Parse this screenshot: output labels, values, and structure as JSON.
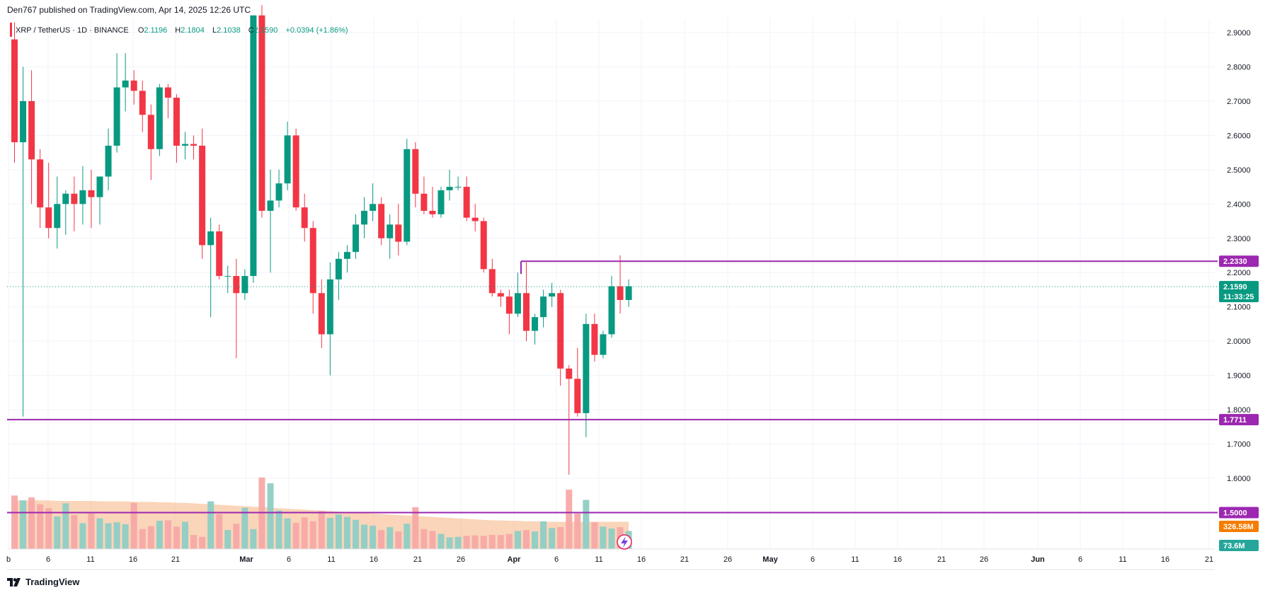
{
  "header": {
    "publisher": "Den767 published on TradingView.com, Apr 14, 2025 12:26 UTC",
    "symbol_line": "XRP / TetherUS · 1D · BINANCE",
    "o_label": "O",
    "o_value": "2.1196",
    "h_label": "H",
    "h_value": "2.1804",
    "l_label": "L",
    "l_value": "2.1038",
    "c_label": "C",
    "c_value": "2.1590",
    "change": "+0.0394 (+1.86%)"
  },
  "brand": {
    "name": "TradingView",
    "logo_icon": "tradingview-logo-icon"
  },
  "colors": {
    "up": "#089981",
    "down": "#f23645",
    "vol_up": "#8fcdc4",
    "vol_down": "#f7a9a7",
    "level": "#9c27b0",
    "vol_ma": "#f7b98a",
    "ma_badge": "#f57c00",
    "current": "#089981",
    "grid": "#f0f3fa"
  },
  "chart_data": {
    "type": "candlestick",
    "symbol": "XRP / TetherUS",
    "interval": "1D",
    "exchange": "BINANCE",
    "ylim": [
      1.55,
      2.95
    ],
    "y_ticks": [
      "2.9000",
      "2.8000",
      "2.7000",
      "2.6000",
      "2.5000",
      "2.4000",
      "2.3000",
      "2.2000",
      "2.1000",
      "2.0000",
      "1.9000",
      "1.8000",
      "1.7000",
      "1.6000"
    ],
    "x_ticks": [
      "b",
      "6",
      "11",
      "16",
      "21",
      "Mar",
      "6",
      "11",
      "16",
      "21",
      "26",
      "Apr",
      "6",
      "11",
      "16",
      "21",
      "26",
      "May",
      "6",
      "11",
      "16",
      "21",
      "26",
      "Jun",
      "6",
      "11",
      "16",
      "21"
    ],
    "candles": [
      {
        "o": 2.88,
        "h": 2.93,
        "l": 2.52,
        "c": 2.58
      },
      {
        "o": 2.58,
        "h": 2.8,
        "l": 1.78,
        "c": 2.7
      },
      {
        "o": 2.7,
        "h": 2.79,
        "l": 2.4,
        "c": 2.53
      },
      {
        "o": 2.53,
        "h": 2.56,
        "l": 2.33,
        "c": 2.39
      },
      {
        "o": 2.39,
        "h": 2.52,
        "l": 2.3,
        "c": 2.33
      },
      {
        "o": 2.33,
        "h": 2.48,
        "l": 2.27,
        "c": 2.4
      },
      {
        "o": 2.4,
        "h": 2.44,
        "l": 2.31,
        "c": 2.43
      },
      {
        "o": 2.43,
        "h": 2.48,
        "l": 2.32,
        "c": 2.4
      },
      {
        "o": 2.4,
        "h": 2.51,
        "l": 2.34,
        "c": 2.44
      },
      {
        "o": 2.44,
        "h": 2.5,
        "l": 2.33,
        "c": 2.42
      },
      {
        "o": 2.42,
        "h": 2.48,
        "l": 2.34,
        "c": 2.48
      },
      {
        "o": 2.48,
        "h": 2.62,
        "l": 2.44,
        "c": 2.57
      },
      {
        "o": 2.57,
        "h": 2.84,
        "l": 2.55,
        "c": 2.74
      },
      {
        "o": 2.74,
        "h": 2.84,
        "l": 2.67,
        "c": 2.76
      },
      {
        "o": 2.76,
        "h": 2.79,
        "l": 2.69,
        "c": 2.73
      },
      {
        "o": 2.73,
        "h": 2.76,
        "l": 2.61,
        "c": 2.66
      },
      {
        "o": 2.66,
        "h": 2.69,
        "l": 2.47,
        "c": 2.56
      },
      {
        "o": 2.56,
        "h": 2.75,
        "l": 2.54,
        "c": 2.74
      },
      {
        "o": 2.74,
        "h": 2.75,
        "l": 2.65,
        "c": 2.71
      },
      {
        "o": 2.71,
        "h": 2.72,
        "l": 2.52,
        "c": 2.57
      },
      {
        "o": 2.57,
        "h": 2.61,
        "l": 2.53,
        "c": 2.575
      },
      {
        "o": 2.575,
        "h": 2.6,
        "l": 2.53,
        "c": 2.57
      },
      {
        "o": 2.57,
        "h": 2.62,
        "l": 2.24,
        "c": 2.28
      },
      {
        "o": 2.28,
        "h": 2.36,
        "l": 2.07,
        "c": 2.32
      },
      {
        "o": 2.32,
        "h": 2.34,
        "l": 2.18,
        "c": 2.19
      },
      {
        "o": 2.19,
        "h": 2.22,
        "l": 2.14,
        "c": 2.19
      },
      {
        "o": 2.19,
        "h": 2.24,
        "l": 1.95,
        "c": 2.14
      },
      {
        "o": 2.14,
        "h": 2.21,
        "l": 2.12,
        "c": 2.19
      },
      {
        "o": 2.19,
        "h": 2.95,
        "l": 2.17,
        "c": 2.95
      },
      {
        "o": 2.95,
        "h": 2.98,
        "l": 2.36,
        "c": 2.38
      },
      {
        "o": 2.38,
        "h": 2.5,
        "l": 2.2,
        "c": 2.41
      },
      {
        "o": 2.41,
        "h": 2.5,
        "l": 2.39,
        "c": 2.46
      },
      {
        "o": 2.46,
        "h": 2.64,
        "l": 2.44,
        "c": 2.6
      },
      {
        "o": 2.6,
        "h": 2.62,
        "l": 2.38,
        "c": 2.39
      },
      {
        "o": 2.39,
        "h": 2.43,
        "l": 2.29,
        "c": 2.33
      },
      {
        "o": 2.33,
        "h": 2.35,
        "l": 2.08,
        "c": 2.14
      },
      {
        "o": 2.14,
        "h": 2.18,
        "l": 1.98,
        "c": 2.02
      },
      {
        "o": 2.02,
        "h": 2.23,
        "l": 1.9,
        "c": 2.18
      },
      {
        "o": 2.18,
        "h": 2.26,
        "l": 2.12,
        "c": 2.24
      },
      {
        "o": 2.24,
        "h": 2.28,
        "l": 2.2,
        "c": 2.26
      },
      {
        "o": 2.26,
        "h": 2.37,
        "l": 2.24,
        "c": 2.34
      },
      {
        "o": 2.34,
        "h": 2.42,
        "l": 2.3,
        "c": 2.38
      },
      {
        "o": 2.38,
        "h": 2.46,
        "l": 2.35,
        "c": 2.4
      },
      {
        "o": 2.4,
        "h": 2.42,
        "l": 2.28,
        "c": 2.3
      },
      {
        "o": 2.3,
        "h": 2.37,
        "l": 2.24,
        "c": 2.34
      },
      {
        "o": 2.34,
        "h": 2.4,
        "l": 2.25,
        "c": 2.29
      },
      {
        "o": 2.29,
        "h": 2.59,
        "l": 2.28,
        "c": 2.56
      },
      {
        "o": 2.56,
        "h": 2.58,
        "l": 2.39,
        "c": 2.43
      },
      {
        "o": 2.43,
        "h": 2.48,
        "l": 2.37,
        "c": 2.38
      },
      {
        "o": 2.38,
        "h": 2.45,
        "l": 2.36,
        "c": 2.37
      },
      {
        "o": 2.37,
        "h": 2.45,
        "l": 2.36,
        "c": 2.44
      },
      {
        "o": 2.44,
        "h": 2.5,
        "l": 2.41,
        "c": 2.45
      },
      {
        "o": 2.45,
        "h": 2.48,
        "l": 2.44,
        "c": 2.45
      },
      {
        "o": 2.45,
        "h": 2.48,
        "l": 2.35,
        "c": 2.36
      },
      {
        "o": 2.36,
        "h": 2.4,
        "l": 2.32,
        "c": 2.35
      },
      {
        "o": 2.35,
        "h": 2.36,
        "l": 2.2,
        "c": 2.21
      },
      {
        "o": 2.21,
        "h": 2.24,
        "l": 2.13,
        "c": 2.14
      },
      {
        "o": 2.14,
        "h": 2.15,
        "l": 2.1,
        "c": 2.13
      },
      {
        "o": 2.13,
        "h": 2.15,
        "l": 2.02,
        "c": 2.08
      },
      {
        "o": 2.08,
        "h": 2.2,
        "l": 2.07,
        "c": 2.14
      },
      {
        "o": 2.14,
        "h": 2.23,
        "l": 2.0,
        "c": 2.03
      },
      {
        "o": 2.03,
        "h": 2.08,
        "l": 1.99,
        "c": 2.07
      },
      {
        "o": 2.07,
        "h": 2.15,
        "l": 2.04,
        "c": 2.13
      },
      {
        "o": 2.13,
        "h": 2.17,
        "l": 2.1,
        "c": 2.14
      },
      {
        "o": 2.14,
        "h": 2.15,
        "l": 1.87,
        "c": 1.92
      },
      {
        "o": 1.92,
        "h": 1.93,
        "l": 1.61,
        "c": 1.89
      },
      {
        "o": 1.89,
        "h": 1.98,
        "l": 1.78,
        "c": 1.79
      },
      {
        "o": 1.79,
        "h": 2.08,
        "l": 1.72,
        "c": 2.05
      },
      {
        "o": 2.05,
        "h": 2.08,
        "l": 1.94,
        "c": 1.96
      },
      {
        "o": 1.96,
        "h": 2.03,
        "l": 1.95,
        "c": 2.02
      },
      {
        "o": 2.02,
        "h": 2.19,
        "l": 2.01,
        "c": 2.16
      },
      {
        "o": 2.16,
        "h": 2.25,
        "l": 2.08,
        "c": 2.12
      },
      {
        "o": 2.12,
        "h": 2.18,
        "l": 2.1,
        "c": 2.16
      }
    ],
    "volume_scale_max": 1.6,
    "volume": [
      1.1,
      1.0,
      1.06,
      0.92,
      0.84,
      0.67,
      0.94,
      0.7,
      0.53,
      0.73,
      0.63,
      0.53,
      0.55,
      0.51,
      0.95,
      0.41,
      0.47,
      0.58,
      0.59,
      0.46,
      0.56,
      0.29,
      0.25,
      0.98,
      0.72,
      0.39,
      0.52,
      0.85,
      0.41,
      1.47,
      1.35,
      0.79,
      0.63,
      0.54,
      0.65,
      0.57,
      0.78,
      0.64,
      0.71,
      0.66,
      0.6,
      0.5,
      0.48,
      0.39,
      0.45,
      0.36,
      0.52,
      0.86,
      0.41,
      0.37,
      0.31,
      0.24,
      0.25,
      0.27,
      0.28,
      0.27,
      0.29,
      0.29,
      0.31,
      0.37,
      0.39,
      0.36,
      0.57,
      0.43,
      0.45,
      1.22,
      0.73,
      1.01,
      0.55,
      0.46,
      0.42,
      0.45,
      0.37
    ],
    "volume_ma": [
      1.0,
      1.0,
      1.0,
      1.0,
      1.0,
      0.99,
      0.99,
      0.99,
      0.99,
      0.99,
      0.98,
      0.98,
      0.98,
      0.98,
      0.97,
      0.97,
      0.97,
      0.96,
      0.96,
      0.95,
      0.95,
      0.94,
      0.93,
      0.92,
      0.91,
      0.9,
      0.89,
      0.88,
      0.87,
      0.86,
      0.85,
      0.84,
      0.83,
      0.82,
      0.81,
      0.8,
      0.79,
      0.78,
      0.77,
      0.76,
      0.75,
      0.74,
      0.73,
      0.72,
      0.71,
      0.7,
      0.69,
      0.68,
      0.67,
      0.66,
      0.65,
      0.64,
      0.63,
      0.62,
      0.61,
      0.6,
      0.59,
      0.59,
      0.58,
      0.58,
      0.57,
      0.57,
      0.56,
      0.56,
      0.56,
      0.56,
      0.56,
      0.56,
      0.56,
      0.56,
      0.56,
      0.56,
      0.56
    ],
    "levels": [
      {
        "name": "resistance",
        "value": 2.233,
        "label": "2.2330"
      },
      {
        "name": "support",
        "value": 1.7711,
        "label": "1.7711"
      },
      {
        "name": "support-low",
        "value": 1.5,
        "label": "1.5000"
      }
    ],
    "current_price": {
      "value": 2.159,
      "label": "2.1590",
      "countdown": "11:33:25"
    },
    "volume_ma_label": "326.58M",
    "volume_label": "73.6M"
  }
}
